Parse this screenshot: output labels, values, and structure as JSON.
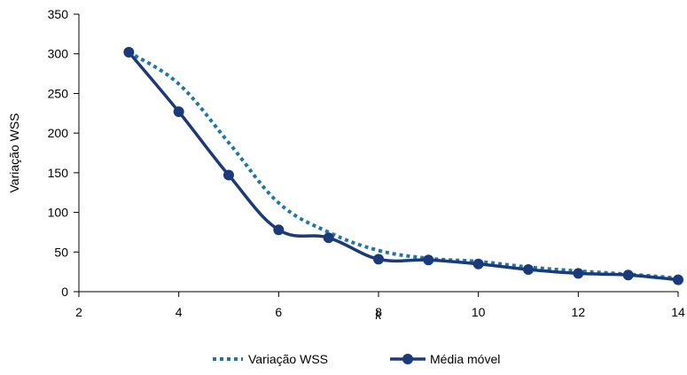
{
  "chart_data": {
    "type": "line",
    "title": "",
    "xlabel": "k",
    "ylabel": "Variação WSS",
    "xlim": [
      2,
      14
    ],
    "ylim": [
      0,
      350
    ],
    "x_ticks": [
      "2",
      "4",
      "6",
      "8",
      "10",
      "12",
      "14"
    ],
    "y_ticks": [
      "0",
      "50",
      "100",
      "150",
      "200",
      "250",
      "300",
      "350"
    ],
    "grid": false,
    "legend_position": "bottom",
    "series": [
      {
        "name": "Variação WSS",
        "style": "dotted",
        "color": "#1f77a8",
        "x": [
          3,
          4,
          5,
          6,
          7,
          8,
          9,
          10,
          11,
          12,
          13,
          14
        ],
        "y": [
          302,
          262,
          188,
          112,
          75,
          52,
          42,
          38,
          31,
          26,
          22,
          17
        ]
      },
      {
        "name": "Média móvel",
        "style": "solid-markers",
        "color": "#1b3a7a",
        "x": [
          3,
          4,
          5,
          6,
          7,
          8,
          9,
          10,
          11,
          12,
          13,
          14
        ],
        "y": [
          302,
          227,
          147,
          78,
          68,
          41,
          40,
          35,
          28,
          23,
          21,
          15
        ]
      }
    ]
  }
}
